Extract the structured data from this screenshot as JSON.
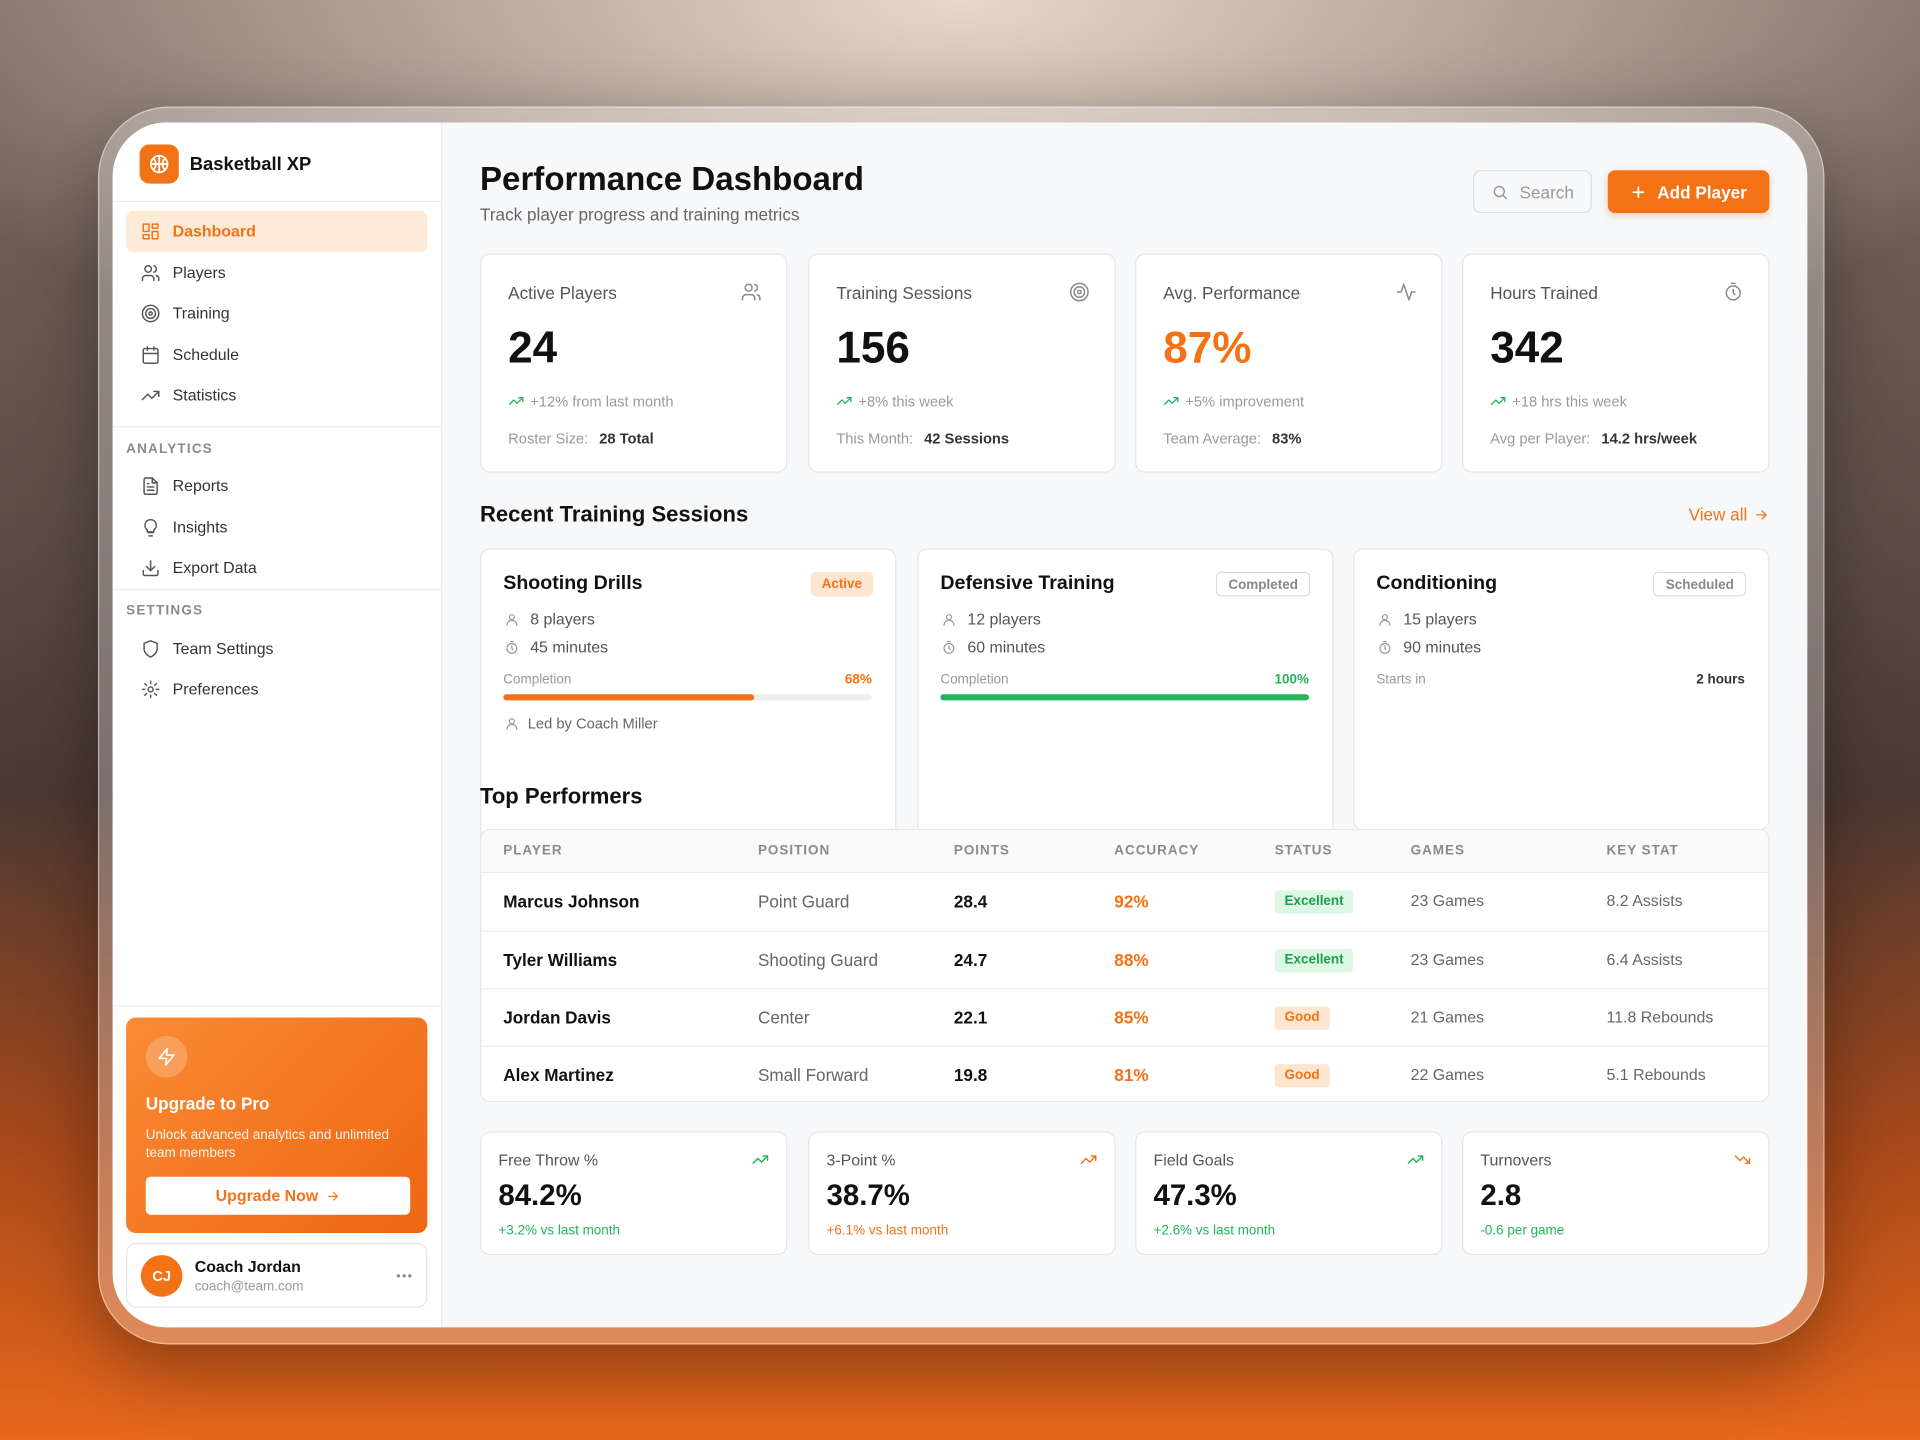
{
  "app": {
    "name": "Basketball XP"
  },
  "nav": {
    "main": [
      "Dashboard",
      "Players",
      "Training",
      "Schedule",
      "Statistics"
    ],
    "analytics_heading": "ANALYTICS",
    "analytics": [
      "Reports",
      "Insights",
      "Export Data"
    ],
    "settings_heading": "SETTINGS",
    "settings": [
      "Team Settings",
      "Preferences"
    ]
  },
  "upgrade": {
    "title": "Upgrade to Pro",
    "text": "Unlock advanced analytics and unlimited team members",
    "button": "Upgrade Now"
  },
  "user": {
    "initials": "CJ",
    "name": "Coach Jordan",
    "email": "coach@team.com"
  },
  "header": {
    "title": "Performance Dashboard",
    "subtitle": "Track player progress and training metrics",
    "search": "Search",
    "add_button": "Add Player"
  },
  "stats": [
    {
      "label": "Active Players",
      "value": "24",
      "change": "+12% from last month",
      "footer_label": "Roster Size:",
      "footer_value": "28 Total"
    },
    {
      "label": "Training Sessions",
      "value": "156",
      "change": "+8% this week",
      "footer_label": "This Month:",
      "footer_value": "42 Sessions"
    },
    {
      "label": "Avg. Performance",
      "value": "87%",
      "change": "+5% improvement",
      "footer_label": "Team Average:",
      "footer_value": "83%"
    },
    {
      "label": "Hours Trained",
      "value": "342",
      "change": "+18 hrs this week",
      "footer_label": "Avg per Player:",
      "footer_value": "14.2 hrs/week"
    }
  ],
  "sessions_heading": "Recent Training Sessions",
  "view_all": "View all",
  "sessions": [
    {
      "title": "Shooting Drills",
      "status": "Active",
      "players": "8 players",
      "duration": "45 minutes",
      "progress_label": "Completion",
      "progress": {
        "value": 68,
        "label": "68%"
      },
      "lead": "Led by Coach Miller"
    },
    {
      "title": "Defensive Training",
      "status": "Completed",
      "players": "12 players",
      "duration": "60 minutes",
      "progress_label": "Completion",
      "progress": {
        "value": 100,
        "label": "100%"
      }
    },
    {
      "title": "Conditioning",
      "status": "Scheduled",
      "players": "15 players",
      "duration": "90 minutes",
      "starts_label": "Starts in",
      "starts_value": "2 hours"
    }
  ],
  "performers": {
    "heading": "Top Performers",
    "columns": [
      "PLAYER",
      "POSITION",
      "POINTS",
      "ACCURACY",
      "STATUS",
      "GAMES",
      "KEY STAT"
    ],
    "rows": [
      [
        "Marcus Johnson",
        "Point Guard",
        "28.4",
        "92%",
        "Excellent",
        "23 Games",
        "8.2 Assists"
      ],
      [
        "Tyler Williams",
        "Shooting Guard",
        "24.7",
        "88%",
        "Excellent",
        "23 Games",
        "6.4 Assists"
      ],
      [
        "Jordan Davis",
        "Center",
        "22.1",
        "85%",
        "Good",
        "21 Games",
        "11.8 Rebounds"
      ],
      [
        "Alex Martinez",
        "Small Forward",
        "19.8",
        "81%",
        "Good",
        "22 Games",
        "5.1 Rebounds"
      ]
    ]
  },
  "metrics": [
    {
      "label": "Free Throw %",
      "value": "84.2%",
      "change": "+3.2% vs last month"
    },
    {
      "label": "3-Point %",
      "value": "38.7%",
      "change": "+6.1% vs last month"
    },
    {
      "label": "Field Goals",
      "value": "47.3%",
      "change": "+2.6% vs last month"
    },
    {
      "label": "Turnovers",
      "value": "2.8",
      "change": "-0.6 per game"
    }
  ]
}
